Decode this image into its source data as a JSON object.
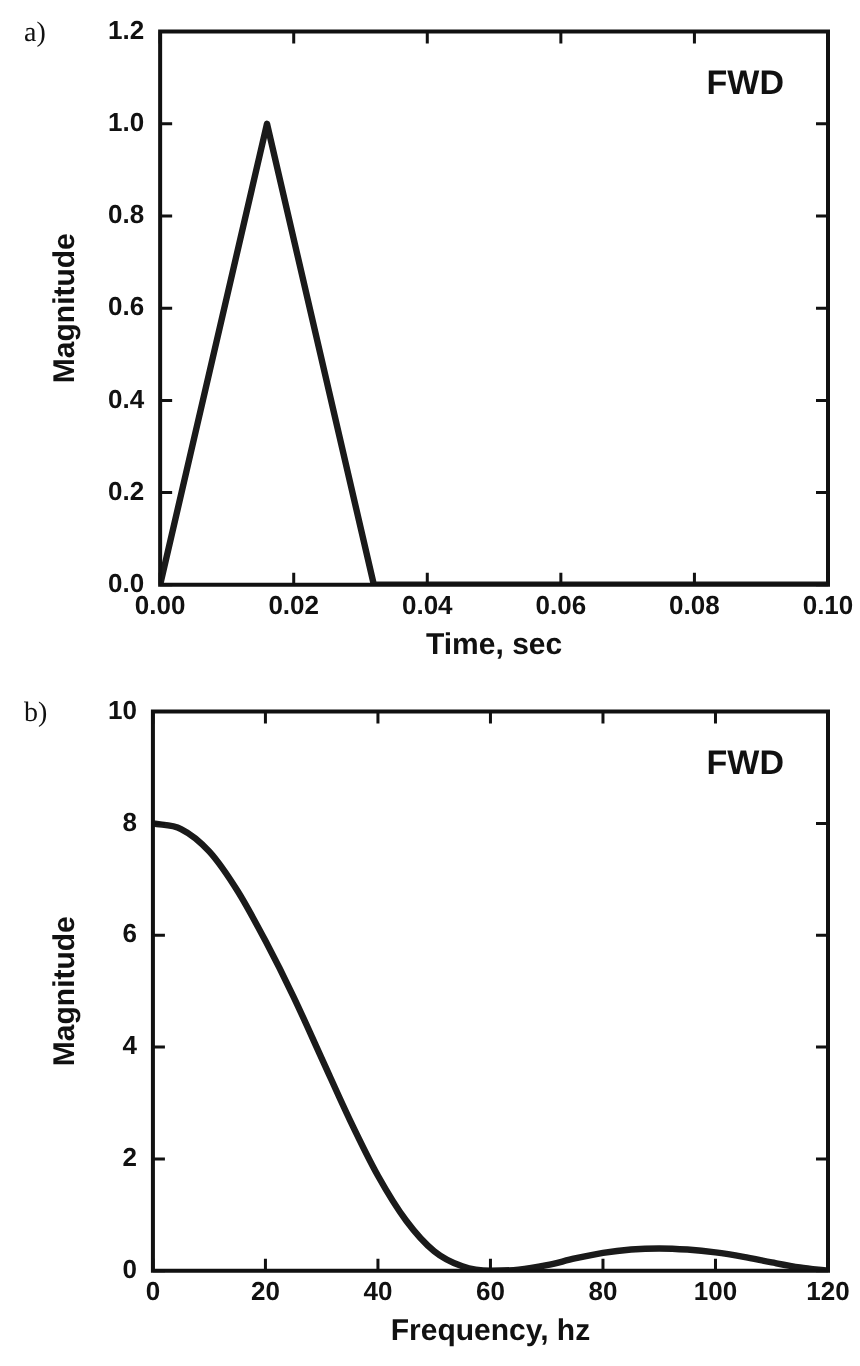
{
  "chart_data": [
    {
      "type": "line",
      "xlabel": "Time, sec",
      "ylabel": "Magnitude",
      "annotations": [
        "a)",
        "FWD"
      ],
      "x": [
        0,
        0.016,
        0.032,
        0.1
      ],
      "series": [
        {
          "color": "#1a1a1a",
          "values": [
            0,
            1.0,
            0,
            0
          ]
        }
      ],
      "xlim": [
        0,
        0.1
      ],
      "xticks": [
        {
          "value": 0,
          "label": "0.00"
        },
        {
          "value": 0.02,
          "label": "0.02"
        },
        {
          "value": 0.04,
          "label": "0.04"
        },
        {
          "value": 0.06,
          "label": "0.06"
        },
        {
          "value": 0.08,
          "label": "0.08"
        },
        {
          "value": 0.1,
          "label": "0.10"
        }
      ],
      "ylim": [
        0,
        1.2
      ],
      "yticks": [
        {
          "value": 0,
          "label": "0.0"
        },
        {
          "value": 0.2,
          "label": "0.2"
        },
        {
          "value": 0.4,
          "label": "0.4"
        },
        {
          "value": 0.6,
          "label": "0.6"
        },
        {
          "value": 0.8,
          "label": "0.8"
        },
        {
          "value": 1.0,
          "label": "1.0"
        },
        {
          "value": 1.2,
          "label": "1.2"
        }
      ],
      "grid": false,
      "legend": false,
      "marker": "none",
      "line_style": "solid"
    },
    {
      "type": "line",
      "xlabel": "Frequency, hz",
      "ylabel": "Magnitude",
      "annotations": [
        "b)",
        "FWD"
      ],
      "x": [
        0,
        5,
        10,
        15,
        20,
        25,
        30,
        35,
        40,
        45,
        50,
        55,
        60,
        65,
        70,
        75,
        80,
        85,
        90,
        95,
        100,
        105,
        110,
        115,
        120
      ],
      "series": [
        {
          "color": "#1a1a1a",
          "values": [
            8.0,
            7.9,
            7.5,
            6.8,
            5.9,
            4.9,
            3.8,
            2.7,
            1.7,
            0.9,
            0.35,
            0.08,
            0,
            0.02,
            0.1,
            0.22,
            0.32,
            0.38,
            0.4,
            0.38,
            0.33,
            0.25,
            0.15,
            0.06,
            0
          ]
        }
      ],
      "xlim": [
        0,
        120
      ],
      "xticks": [
        0,
        20,
        40,
        60,
        80,
        100,
        120
      ],
      "ylim": [
        0,
        10
      ],
      "yticks": [
        0,
        2,
        4,
        6,
        8,
        10
      ],
      "grid": false,
      "legend": false,
      "marker": "none",
      "line_style": "solid"
    }
  ]
}
